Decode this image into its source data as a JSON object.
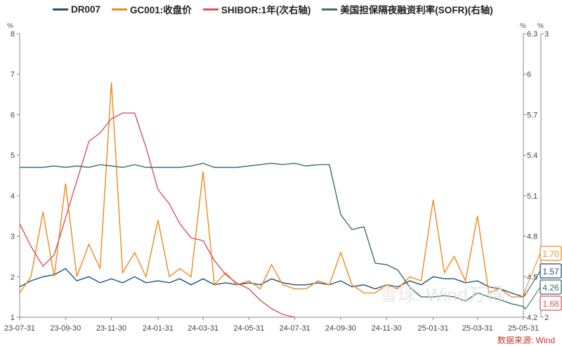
{
  "legend": [
    {
      "name": "DR007",
      "color": "#1f4e79"
    },
    {
      "name": "GC001:收盘价",
      "color": "#f0891d"
    },
    {
      "name": "SHIBOR:1年(次右轴)",
      "color": "#d9545a"
    },
    {
      "name": "美国担保隔夜融资利率(SOFR)(右轴)",
      "color": "#3d6e6e"
    }
  ],
  "source": "数据来源: Wind",
  "watermark": "雪球: Wind万得",
  "chart_data": {
    "type": "line",
    "xlabels": [
      "23-07-31",
      "23-09-30",
      "23-11-30",
      "24-01-31",
      "24-03-31",
      "24-05-31",
      "24-07-31",
      "24-09-30",
      "24-11-30",
      "25-01-31",
      "25-03-31",
      "25-05-31"
    ],
    "y_left": {
      "unit": "%",
      "range": [
        1,
        8
      ],
      "ticks": [
        1,
        2,
        3,
        4,
        5,
        6,
        7,
        8
      ]
    },
    "y_right": {
      "unit": "%",
      "range": [
        4.2,
        6.3
      ],
      "ticks": [
        4.2,
        4.5,
        4.8,
        5.1,
        5.4,
        5.7,
        6,
        6.3
      ]
    },
    "y_right2": {
      "unit": "%",
      "range": [
        2,
        3
      ],
      "ticks": [
        2,
        3
      ]
    },
    "x": [
      "2023-07-31",
      "2023-08-15",
      "2023-08-31",
      "2023-09-15",
      "2023-09-30",
      "2023-10-15",
      "2023-10-31",
      "2023-11-15",
      "2023-11-30",
      "2023-12-15",
      "2023-12-31",
      "2024-01-15",
      "2024-01-31",
      "2024-02-15",
      "2024-02-29",
      "2024-03-15",
      "2024-03-31",
      "2024-04-15",
      "2024-04-30",
      "2024-05-15",
      "2024-05-31",
      "2024-06-15",
      "2024-06-30",
      "2024-07-15",
      "2024-07-31",
      "2024-08-15",
      "2024-08-31",
      "2024-09-15",
      "2024-09-30",
      "2024-10-15",
      "2024-10-31",
      "2024-11-15",
      "2024-11-30",
      "2024-12-15",
      "2024-12-31",
      "2025-01-15",
      "2025-01-31",
      "2025-02-15",
      "2025-02-28",
      "2025-03-15",
      "2025-03-31",
      "2025-04-15",
      "2025-04-30",
      "2025-05-15",
      "2025-05-31",
      "2025-06-03"
    ],
    "series": [
      {
        "name": "DR007",
        "axis": "left",
        "color": "#1f4e79",
        "last_label": "1.57",
        "values": [
          1.75,
          1.9,
          2.0,
          2.05,
          2.2,
          1.9,
          2.0,
          1.85,
          1.95,
          1.85,
          2.0,
          1.85,
          1.9,
          1.85,
          1.95,
          1.8,
          1.95,
          1.8,
          1.85,
          1.8,
          1.85,
          1.8,
          1.95,
          1.85,
          1.8,
          1.8,
          1.85,
          1.8,
          1.9,
          1.75,
          1.8,
          1.7,
          1.8,
          1.75,
          1.9,
          1.8,
          2.0,
          1.95,
          1.95,
          1.85,
          1.9,
          1.75,
          1.7,
          1.6,
          1.5,
          1.57
        ]
      },
      {
        "name": "GC001:收盘价",
        "axis": "left",
        "color": "#f0891d",
        "last_label": "1.70",
        "values": [
          1.6,
          2.0,
          3.6,
          2.0,
          4.3,
          2.0,
          2.8,
          2.2,
          6.8,
          2.1,
          2.6,
          2.0,
          3.4,
          2.0,
          2.2,
          2.0,
          4.6,
          1.8,
          2.1,
          1.8,
          1.9,
          1.7,
          2.3,
          1.8,
          1.7,
          1.7,
          1.9,
          1.8,
          2.6,
          1.8,
          1.6,
          1.6,
          1.8,
          1.7,
          2.0,
          1.9,
          3.9,
          2.1,
          2.5,
          1.9,
          3.5,
          1.6,
          1.7,
          1.5,
          1.5,
          1.7
        ]
      },
      {
        "name": "SHIBOR:1年(次右轴)",
        "axis": "right2",
        "color": "#d9545a",
        "last_label": "1.68",
        "values": [
          2.33,
          2.25,
          2.18,
          2.22,
          2.35,
          2.48,
          2.62,
          2.65,
          2.7,
          2.72,
          2.72,
          2.6,
          2.45,
          2.4,
          2.33,
          2.28,
          2.27,
          2.2,
          2.15,
          2.12,
          2.1,
          2.06,
          2.03,
          2.01,
          2.0,
          null,
          null,
          null,
          null,
          null,
          null,
          null,
          null,
          null,
          null,
          null,
          null,
          null,
          null,
          null,
          null,
          null,
          null,
          null,
          null,
          null
        ]
      },
      {
        "name": "美国担保隔夜融资利率(SOFR)(右轴)",
        "axis": "right",
        "color": "#3d6e6e",
        "last_label": "4.26",
        "values": [
          5.31,
          5.31,
          5.31,
          5.32,
          5.31,
          5.32,
          5.31,
          5.33,
          5.32,
          5.31,
          5.33,
          5.31,
          5.31,
          5.31,
          5.31,
          5.32,
          5.34,
          5.31,
          5.31,
          5.31,
          5.32,
          5.33,
          5.34,
          5.33,
          5.34,
          5.32,
          5.33,
          5.33,
          4.96,
          4.85,
          4.87,
          4.6,
          4.59,
          4.55,
          4.42,
          4.35,
          4.35,
          4.36,
          4.35,
          4.32,
          4.38,
          4.35,
          4.33,
          4.3,
          4.28,
          4.26
        ]
      }
    ]
  }
}
